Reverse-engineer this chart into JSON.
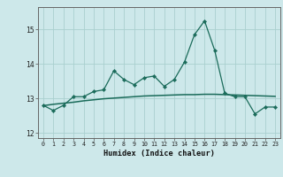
{
  "title": "",
  "xlabel": "Humidex (Indice chaleur)",
  "x_values": [
    0,
    1,
    2,
    3,
    4,
    5,
    6,
    7,
    8,
    9,
    10,
    11,
    12,
    13,
    14,
    15,
    16,
    17,
    18,
    19,
    20,
    21,
    22,
    23
  ],
  "y_main": [
    12.8,
    12.65,
    12.8,
    13.05,
    13.05,
    13.2,
    13.25,
    13.8,
    13.55,
    13.4,
    13.6,
    13.65,
    13.35,
    13.55,
    14.05,
    14.85,
    15.25,
    14.4,
    13.15,
    13.05,
    13.05,
    12.55,
    12.75,
    12.75
  ],
  "y_trend": [
    12.79,
    12.83,
    12.86,
    12.89,
    12.93,
    12.96,
    12.99,
    13.01,
    13.03,
    13.05,
    13.07,
    13.08,
    13.09,
    13.1,
    13.11,
    13.11,
    13.12,
    13.12,
    13.11,
    13.1,
    13.09,
    13.08,
    13.07,
    13.06
  ],
  "line_color": "#1a6b5a",
  "bg_color": "#cde8ea",
  "grid_color": "#aacfcf",
  "ylim": [
    11.85,
    15.65
  ],
  "yticks": [
    12,
    13,
    14,
    15
  ],
  "xlim": [
    -0.5,
    23.5
  ],
  "xtick_fontsize": 4.8,
  "ytick_fontsize": 5.8,
  "xlabel_fontsize": 6.2
}
